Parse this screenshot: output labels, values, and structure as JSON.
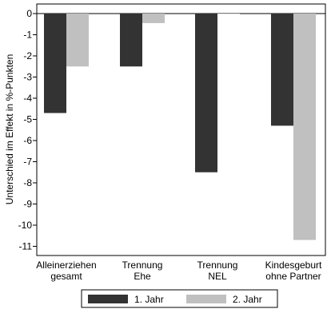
{
  "chart_data": {
    "type": "bar",
    "title": "",
    "xlabel": "",
    "ylabel": "Unterschied im Effekt in %-Punkten",
    "ylim": [
      -11.5,
      0.1
    ],
    "y_ticks": [
      0,
      -1,
      -2,
      -3,
      -4,
      -5,
      -6,
      -7,
      -8,
      -9,
      -10,
      -11
    ],
    "grid": false,
    "legend_position": "bottom",
    "categories": [
      [
        "Alleinerziehen",
        "gesamt"
      ],
      [
        "Trennung",
        "Ehe"
      ],
      [
        "Trennung",
        "NEL"
      ],
      [
        "Kindesgeburt",
        "ohne Partner"
      ]
    ],
    "series": [
      {
        "name": "1. Jahr",
        "color": "#333333",
        "values": [
          -4.7,
          -2.5,
          -7.5,
          -5.3
        ]
      },
      {
        "name": "2. Jahr",
        "color": "#c0c0c0",
        "values": [
          -2.5,
          -0.45,
          0.0,
          -10.7
        ]
      }
    ]
  }
}
